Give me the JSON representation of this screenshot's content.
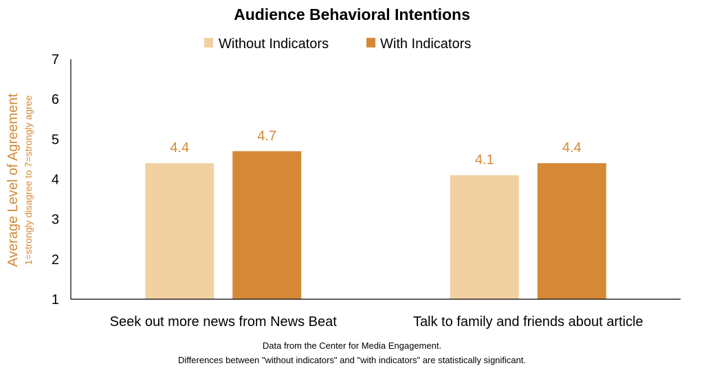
{
  "chart_data": {
    "type": "bar",
    "title": "Audience Behavioral Intentions",
    "ylabel": "Average Level of Agreement",
    "ylabel_sub": "1=strongly disagree to 7=strongly agree",
    "xlabel": "",
    "ylim": [
      1,
      7
    ],
    "yticks": [
      "1",
      "2",
      "3",
      "4",
      "5",
      "6",
      "7"
    ],
    "grid": false,
    "legend_position": "top",
    "categories": [
      "Seek out more news from News Beat",
      "Talk to family and friends about article"
    ],
    "series": [
      {
        "name": "Without Indicators",
        "values": [
          4.4,
          4.1
        ],
        "labels": [
          "4.4",
          "4.1"
        ],
        "color": "#F1D0A2"
      },
      {
        "name": "With Indicators",
        "values": [
          4.7,
          4.4
        ],
        "labels": [
          "4.7",
          "4.4"
        ],
        "color": "#D58936"
      }
    ],
    "data_label_color": "#D58936",
    "footnotes": [
      "Data from the Center for Media Engagement.",
      "Differences between \"without indicators\" and \"with indicators\" are statistically significant."
    ]
  }
}
